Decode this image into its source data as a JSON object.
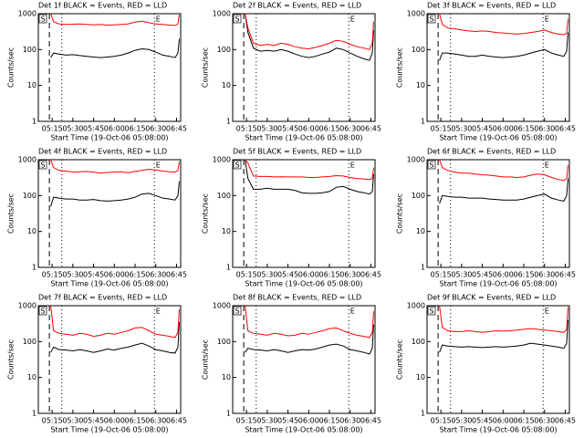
{
  "chart_data": [
    {
      "type": "line",
      "title": "Det 1f BLACK = Events, RED = LLD",
      "x_label": "Start Time (19-Oct-06 05:08:00)",
      "y_label": "Counts/sec",
      "log_y": true,
      "xlim": [
        "05:05",
        "06:48"
      ],
      "xticks": [
        "05:15",
        "05:30",
        "05:45",
        "06:00",
        "06:15",
        "06:30",
        "06:45"
      ],
      "ylim": [
        1,
        1000
      ],
      "yticks": [
        1,
        10,
        100,
        1000
      ],
      "start_label": "S",
      "end_label": "E",
      "dashed_x": "05:13",
      "dotted_x": [
        "05:22",
        "06:29"
      ],
      "x": [
        "05:14",
        "05:16",
        "05:20",
        "05:25",
        "05:30",
        "05:35",
        "05:40",
        "05:45",
        "05:50",
        "05:55",
        "06:00",
        "06:05",
        "06:10",
        "06:15",
        "06:20",
        "06:25",
        "06:30",
        "06:35",
        "06:40",
        "06:44",
        "06:46",
        "06:47"
      ],
      "series": [
        {
          "color": "#000000",
          "values": [
            60,
            80,
            75,
            70,
            72,
            68,
            65,
            62,
            60,
            62,
            65,
            70,
            80,
            95,
            105,
            100,
            85,
            70,
            65,
            60,
            80,
            200
          ]
        },
        {
          "color": "#ff0000",
          "values": [
            1000,
            600,
            520,
            500,
            510,
            520,
            500,
            490,
            500,
            480,
            490,
            500,
            520,
            580,
            620,
            560,
            520,
            500,
            480,
            470,
            520,
            950
          ]
        }
      ]
    },
    {
      "type": "line",
      "title": "Det 2f BLACK = Events, RED = LLD",
      "x_label": "Start Time (19-Oct-06 05:08:00)",
      "y_label": "Counts/sec",
      "log_y": true,
      "xlim": [
        "05:05",
        "06:48"
      ],
      "xticks": [
        "05:15",
        "05:30",
        "05:45",
        "06:00",
        "06:15",
        "06:30",
        "06:45"
      ],
      "ylim": [
        1,
        1000
      ],
      "yticks": [
        1,
        10,
        100,
        1000
      ],
      "start_label": "S",
      "end_label": "E",
      "dashed_x": "05:13",
      "dotted_x": [
        "05:22",
        "06:29"
      ],
      "x": [
        "05:14",
        "05:16",
        "05:20",
        "05:25",
        "05:30",
        "05:35",
        "05:40",
        "05:45",
        "05:50",
        "05:55",
        "06:00",
        "06:05",
        "06:10",
        "06:15",
        "06:20",
        "06:25",
        "06:30",
        "06:35",
        "06:40",
        "06:44",
        "06:46",
        "06:47"
      ],
      "series": [
        {
          "color": "#000000",
          "values": [
            1000,
            300,
            110,
            90,
            95,
            90,
            100,
            90,
            75,
            65,
            60,
            65,
            75,
            85,
            110,
            100,
            80,
            65,
            55,
            50,
            80,
            350
          ]
        },
        {
          "color": "#ff0000",
          "values": [
            1000,
            400,
            150,
            130,
            140,
            130,
            150,
            140,
            120,
            110,
            105,
            115,
            130,
            150,
            180,
            170,
            140,
            120,
            110,
            100,
            150,
            600
          ]
        }
      ]
    },
    {
      "type": "line",
      "title": "Det 3f BLACK = Events, RED = LLD",
      "x_label": "Start Time (19-Oct-06 05:08:00)",
      "y_label": "Counts/sec",
      "log_y": true,
      "xlim": [
        "05:05",
        "06:48"
      ],
      "xticks": [
        "05:15",
        "05:30",
        "05:45",
        "06:00",
        "06:15",
        "06:30",
        "06:45"
      ],
      "ylim": [
        1,
        1000
      ],
      "yticks": [
        1,
        10,
        100,
        1000
      ],
      "start_label": "S",
      "end_label": "E",
      "dashed_x": "05:13",
      "dotted_x": [
        "05:22",
        "06:29"
      ],
      "x": [
        "05:14",
        "05:16",
        "05:20",
        "05:25",
        "05:30",
        "05:35",
        "05:40",
        "05:45",
        "05:50",
        "05:55",
        "06:00",
        "06:05",
        "06:10",
        "06:15",
        "06:20",
        "06:25",
        "06:30",
        "06:35",
        "06:40",
        "06:44",
        "06:46",
        "06:47"
      ],
      "series": [
        {
          "color": "#000000",
          "values": [
            50,
            80,
            80,
            75,
            70,
            65,
            65,
            70,
            65,
            62,
            60,
            62,
            65,
            70,
            80,
            90,
            100,
            80,
            70,
            65,
            90,
            300
          ]
        },
        {
          "color": "#ff0000",
          "values": [
            1000,
            500,
            400,
            380,
            350,
            330,
            320,
            330,
            320,
            300,
            290,
            280,
            270,
            280,
            300,
            320,
            350,
            300,
            270,
            260,
            280,
            700
          ]
        }
      ]
    },
    {
      "type": "line",
      "title": "Det 4f BLACK = Events, RED = LLD",
      "x_label": "Start Time (19-Oct-06 05:08:00)",
      "y_label": "Counts/sec",
      "log_y": true,
      "xlim": [
        "05:05",
        "06:48"
      ],
      "xticks": [
        "05:15",
        "05:30",
        "05:45",
        "06:00",
        "06:15",
        "06:30",
        "06:45"
      ],
      "ylim": [
        1,
        1000
      ],
      "yticks": [
        1,
        10,
        100,
        1000
      ],
      "start_label": "S",
      "end_label": "E",
      "dashed_x": "05:13",
      "dotted_x": [
        "05:22",
        "06:29"
      ],
      "x": [
        "05:14",
        "05:16",
        "05:20",
        "05:25",
        "05:30",
        "05:35",
        "05:40",
        "05:45",
        "05:50",
        "05:55",
        "06:00",
        "06:05",
        "06:10",
        "06:15",
        "06:20",
        "06:25",
        "06:30",
        "06:35",
        "06:40",
        "06:44",
        "06:46",
        "06:47"
      ],
      "series": [
        {
          "color": "#000000",
          "values": [
            50,
            90,
            85,
            80,
            80,
            75,
            75,
            78,
            72,
            70,
            72,
            75,
            80,
            90,
            110,
            115,
            100,
            85,
            80,
            75,
            100,
            250
          ]
        },
        {
          "color": "#ff0000",
          "values": [
            1000,
            600,
            500,
            480,
            450,
            460,
            470,
            450,
            420,
            440,
            450,
            460,
            430,
            470,
            500,
            540,
            520,
            480,
            460,
            450,
            500,
            900
          ]
        }
      ]
    },
    {
      "type": "line",
      "title": "Det 5f BLACK = Events, RED = LLD",
      "x_label": "Start Time (19-Oct-06 05:08:00)",
      "y_label": "Counts/sec",
      "log_y": true,
      "xlim": [
        "05:05",
        "06:48"
      ],
      "xticks": [
        "05:15",
        "05:30",
        "05:45",
        "06:00",
        "06:15",
        "06:30",
        "06:45"
      ],
      "ylim": [
        1,
        1000
      ],
      "yticks": [
        1,
        10,
        100,
        1000
      ],
      "start_label": "S",
      "end_label": "E",
      "dashed_x": "05:13",
      "dotted_x": [
        "05:22",
        "06:29"
      ],
      "x": [
        "05:14",
        "05:16",
        "05:20",
        "05:25",
        "05:30",
        "05:35",
        "05:40",
        "05:45",
        "05:50",
        "05:55",
        "06:00",
        "06:05",
        "06:10",
        "06:15",
        "06:20",
        "06:25",
        "06:30",
        "06:35",
        "06:40",
        "06:44",
        "06:46",
        "06:47"
      ],
      "series": [
        {
          "color": "#000000",
          "values": [
            1000,
            300,
            150,
            150,
            160,
            150,
            150,
            150,
            140,
            120,
            115,
            115,
            120,
            130,
            170,
            180,
            150,
            130,
            120,
            110,
            130,
            400
          ]
        },
        {
          "color": "#ff0000",
          "values": [
            1000,
            800,
            350,
            340,
            340,
            330,
            335,
            330,
            330,
            330,
            320,
            320,
            330,
            340,
            360,
            350,
            320,
            300,
            290,
            280,
            300,
            600
          ]
        }
      ]
    },
    {
      "type": "line",
      "title": "Det 6f BLACK = Events, RED = LLD",
      "x_label": "Start Time (19-Oct-06 05:08:00)",
      "y_label": "Counts/sec",
      "log_y": true,
      "xlim": [
        "05:05",
        "06:48"
      ],
      "xticks": [
        "05:15",
        "05:30",
        "05:45",
        "06:00",
        "06:15",
        "06:30",
        "06:45"
      ],
      "ylim": [
        1,
        1000
      ],
      "yticks": [
        1,
        10,
        100,
        1000
      ],
      "start_label": "S",
      "end_label": "E",
      "dashed_x": "05:13",
      "dotted_x": [
        "05:22",
        "06:29"
      ],
      "x": [
        "05:14",
        "05:16",
        "05:20",
        "05:25",
        "05:30",
        "05:35",
        "05:40",
        "05:45",
        "05:50",
        "05:55",
        "06:00",
        "06:05",
        "06:10",
        "06:15",
        "06:20",
        "06:25",
        "06:30",
        "06:35",
        "06:40",
        "06:44",
        "06:46",
        "06:47"
      ],
      "series": [
        {
          "color": "#000000",
          "values": [
            60,
            100,
            95,
            90,
            90,
            85,
            85,
            85,
            80,
            78,
            75,
            75,
            75,
            80,
            90,
            100,
            110,
            85,
            75,
            70,
            100,
            300
          ]
        },
        {
          "color": "#ff0000",
          "values": [
            1000,
            600,
            500,
            450,
            420,
            420,
            400,
            380,
            370,
            350,
            330,
            330,
            320,
            330,
            370,
            400,
            380,
            320,
            280,
            260,
            300,
            700
          ]
        }
      ]
    },
    {
      "type": "line",
      "title": "Det 7f BLACK = Events, RED = LLD",
      "x_label": "Start Time (19-Oct-06 05:08:00)",
      "y_label": "Counts/sec",
      "log_y": true,
      "xlim": [
        "05:05",
        "06:48"
      ],
      "xticks": [
        "05:15",
        "05:30",
        "05:45",
        "06:00",
        "06:15",
        "06:30",
        "06:45"
      ],
      "ylim": [
        1,
        1000
      ],
      "yticks": [
        1,
        10,
        100,
        1000
      ],
      "start_label": "S",
      "end_label": "E",
      "dashed_x": "05:13",
      "dotted_x": [
        "05:22",
        "06:29"
      ],
      "x": [
        "05:14",
        "05:16",
        "05:20",
        "05:25",
        "05:30",
        "05:35",
        "05:40",
        "05:45",
        "05:50",
        "05:55",
        "06:00",
        "06:05",
        "06:10",
        "06:15",
        "06:20",
        "06:25",
        "06:30",
        "06:35",
        "06:40",
        "06:44",
        "06:46",
        "06:47"
      ],
      "series": [
        {
          "color": "#000000",
          "values": [
            50,
            70,
            60,
            58,
            55,
            60,
            55,
            50,
            55,
            62,
            58,
            65,
            70,
            80,
            90,
            75,
            60,
            55,
            50,
            48,
            70,
            350
          ]
        },
        {
          "color": "#ff0000",
          "values": [
            1000,
            200,
            170,
            160,
            150,
            170,
            160,
            140,
            150,
            170,
            160,
            180,
            200,
            240,
            250,
            200,
            160,
            150,
            140,
            130,
            180,
            800
          ]
        }
      ]
    },
    {
      "type": "line",
      "title": "Det 8f BLACK = Events, RED = LLD",
      "x_label": "Start Time (19-Oct-06 05:08:00)",
      "y_label": "Counts/sec",
      "log_y": true,
      "xlim": [
        "05:05",
        "06:48"
      ],
      "xticks": [
        "05:15",
        "05:30",
        "05:45",
        "06:00",
        "06:15",
        "06:30",
        "06:45"
      ],
      "ylim": [
        1,
        1000
      ],
      "yticks": [
        1,
        10,
        100,
        1000
      ],
      "start_label": "S",
      "end_label": "E",
      "dashed_x": "05:13",
      "dotted_x": [
        "05:22",
        "06:29"
      ],
      "x": [
        "05:14",
        "05:16",
        "05:20",
        "05:25",
        "05:30",
        "05:35",
        "05:40",
        "05:45",
        "05:50",
        "05:55",
        "06:00",
        "06:05",
        "06:10",
        "06:15",
        "06:20",
        "06:25",
        "06:30",
        "06:35",
        "06:40",
        "06:44",
        "06:46",
        "06:47"
      ],
      "series": [
        {
          "color": "#000000",
          "values": [
            50,
            65,
            60,
            58,
            55,
            60,
            55,
            50,
            55,
            60,
            58,
            62,
            70,
            80,
            85,
            75,
            60,
            55,
            50,
            45,
            65,
            300
          ]
        },
        {
          "color": "#ff0000",
          "values": [
            1000,
            200,
            170,
            160,
            150,
            170,
            160,
            145,
            150,
            170,
            160,
            180,
            200,
            230,
            240,
            200,
            170,
            150,
            140,
            130,
            180,
            700
          ]
        }
      ]
    },
    {
      "type": "line",
      "title": "Det 9f BLACK = Events, RED = LLD",
      "x_label": "Start Time (19-Oct-06 05:08:00)",
      "y_label": "Counts/sec",
      "log_y": true,
      "xlim": [
        "05:05",
        "06:48"
      ],
      "xticks": [
        "05:15",
        "05:30",
        "05:45",
        "06:00",
        "06:15",
        "06:30",
        "06:45"
      ],
      "ylim": [
        1,
        1000
      ],
      "yticks": [
        1,
        10,
        100,
        1000
      ],
      "start_label": "S",
      "end_label": "E",
      "dashed_x": "05:13",
      "dotted_x": [
        "05:22",
        "06:29"
      ],
      "x": [
        "05:14",
        "05:16",
        "05:20",
        "05:25",
        "05:30",
        "05:35",
        "05:40",
        "05:45",
        "05:50",
        "05:55",
        "06:00",
        "06:05",
        "06:10",
        "06:15",
        "06:20",
        "06:25",
        "06:30",
        "06:35",
        "06:40",
        "06:44",
        "06:46",
        "06:47"
      ],
      "series": [
        {
          "color": "#000000",
          "values": [
            50,
            80,
            75,
            72,
            70,
            72,
            70,
            68,
            70,
            72,
            70,
            72,
            75,
            80,
            90,
            85,
            80,
            75,
            70,
            65,
            90,
            400
          ]
        },
        {
          "color": "#ff0000",
          "values": [
            1000,
            250,
            200,
            190,
            190,
            200,
            190,
            180,
            190,
            200,
            195,
            200,
            210,
            220,
            230,
            220,
            210,
            200,
            190,
            180,
            220,
            900
          ]
        }
      ]
    }
  ]
}
